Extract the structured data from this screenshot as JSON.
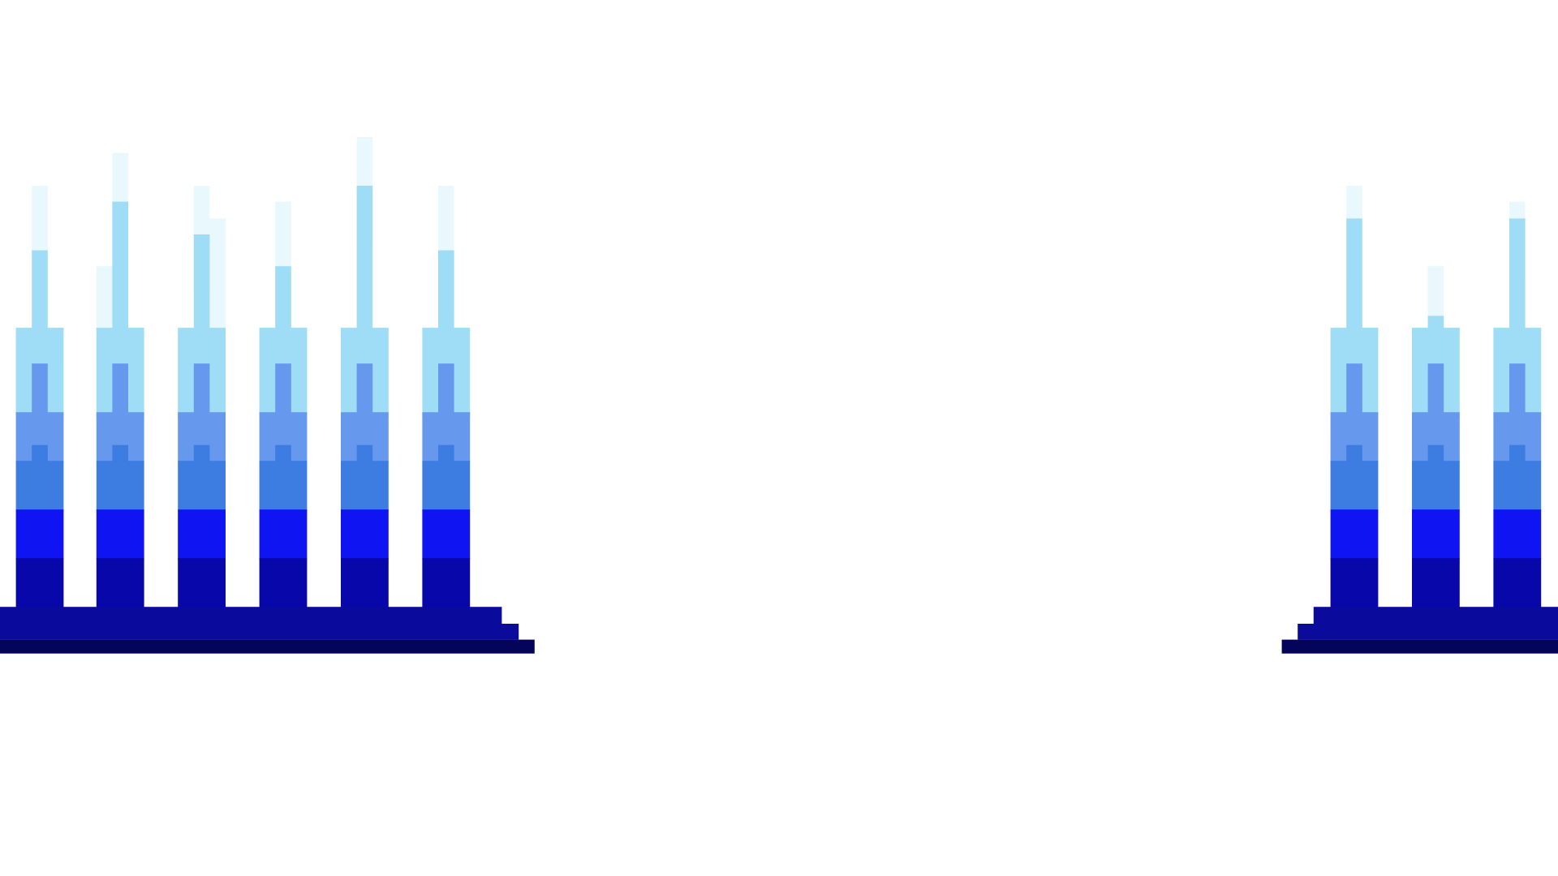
{
  "background": "#ffffff",
  "palette": {
    "pale": "#e8f8fd",
    "light": "#9fdcf6",
    "light_edge": "#4fc3ee",
    "mid": "#6699ee",
    "mid_dark": "#3d7ce0",
    "bright": "#0e14f2",
    "dark": "#0807aa",
    "base": "#0a0a9c",
    "base_shadow": "#04045a"
  },
  "graphic": {
    "description_free": true,
    "groups": [
      {
        "name": "left-bar-cluster",
        "bar_count": 6
      },
      {
        "name": "right-bar-cluster",
        "bar_count": 3
      }
    ]
  }
}
